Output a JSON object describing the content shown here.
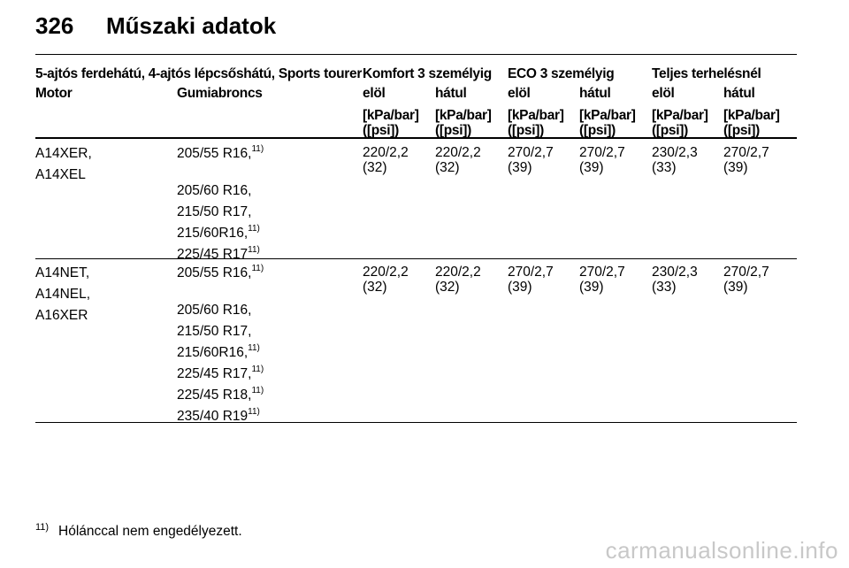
{
  "page": {
    "number": "326",
    "heading": "Műszaki adatok"
  },
  "table": {
    "group_label": "5-ajtós ferdehátú, 4-ajtós lépcsőshátú, Sports tourer",
    "load_groups": [
      "Komfort 3 személyig",
      "ECO 3 személyig",
      "Teljes terhelésnél"
    ],
    "col_motor": "Motor",
    "col_tire": "Gumiabroncs",
    "sub_cols": [
      "elöl",
      "hátul",
      "elöl",
      "hátul",
      "elöl",
      "hátul"
    ],
    "unit_line1": "[kPa/bar]",
    "unit_line2": "([psi])",
    "rows": [
      {
        "motors": [
          "A14XER,",
          "A14XEL"
        ],
        "tires": [
          {
            "text": "205/55 R16,",
            "note": "11)"
          },
          {
            "text": "205/60 R16,",
            "note": ""
          },
          {
            "text": "215/50 R17,",
            "note": ""
          },
          {
            "text": "215/60R16,",
            "note": "11)"
          },
          {
            "text": "225/45 R17",
            "note": "11)"
          }
        ],
        "pressures": [
          {
            "bar": "220/2,2",
            "psi": "(32)"
          },
          {
            "bar": "220/2,2",
            "psi": "(32)"
          },
          {
            "bar": "270/2,7",
            "psi": "(39)"
          },
          {
            "bar": "270/2,7",
            "psi": "(39)"
          },
          {
            "bar": "230/2,3",
            "psi": "(33)"
          },
          {
            "bar": "270/2,7",
            "psi": "(39)"
          }
        ]
      },
      {
        "motors": [
          "A14NET,",
          "A14NEL,",
          "A16XER"
        ],
        "tires": [
          {
            "text": "205/55 R16,",
            "note": "11)"
          },
          {
            "text": "205/60 R16,",
            "note": ""
          },
          {
            "text": "215/50 R17,",
            "note": ""
          },
          {
            "text": "215/60R16,",
            "note": "11)"
          },
          {
            "text": "225/45 R17,",
            "note": "11)"
          },
          {
            "text": "225/45 R18,",
            "note": "11)"
          },
          {
            "text": "235/40 R19",
            "note": "11)"
          }
        ],
        "pressures": [
          {
            "bar": "220/2,2",
            "psi": "(32)"
          },
          {
            "bar": "220/2,2",
            "psi": "(32)"
          },
          {
            "bar": "270/2,7",
            "psi": "(39)"
          },
          {
            "bar": "270/2,7",
            "psi": "(39)"
          },
          {
            "bar": "230/2,3",
            "psi": "(33)"
          },
          {
            "bar": "270/2,7",
            "psi": "(39)"
          }
        ]
      }
    ]
  },
  "footnote": {
    "marker": "11)",
    "text": "Hólánccal nem engedélyezett."
  },
  "watermark": "carmanualsonline.info"
}
